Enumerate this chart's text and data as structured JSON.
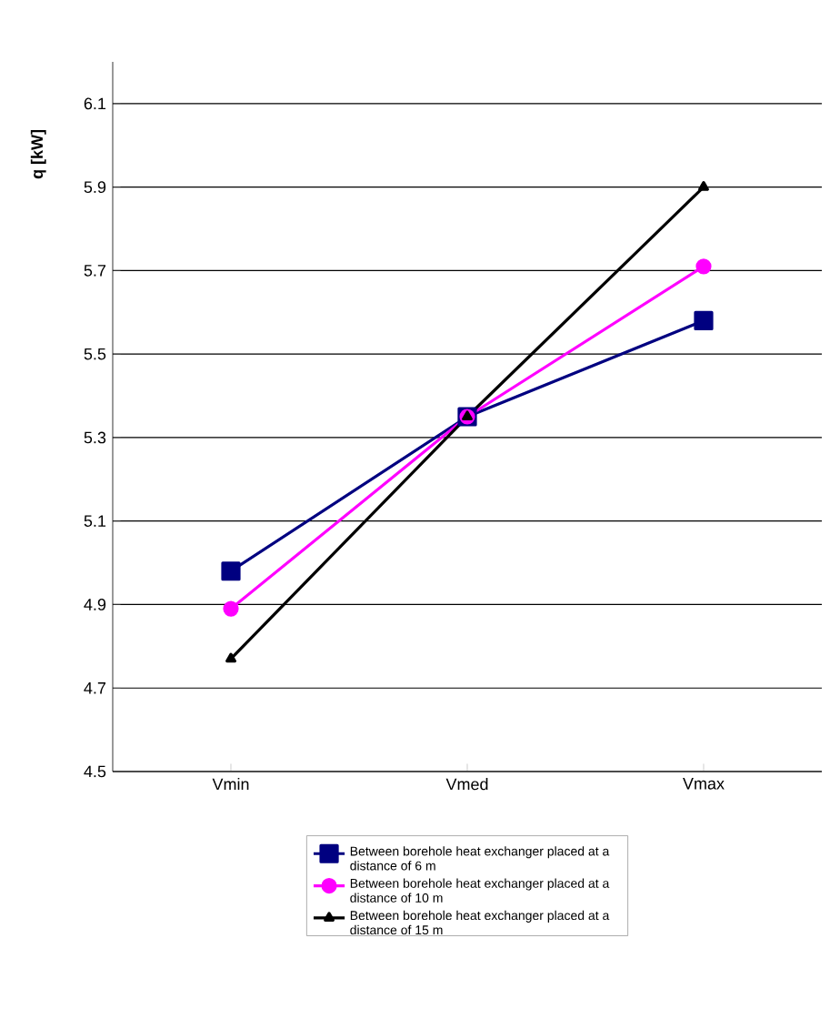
{
  "chart_data": {
    "type": "line",
    "ylabel": "q [kW]",
    "categories": [
      "Vmin",
      "Vmed",
      "Vmax"
    ],
    "series": [
      {
        "name": "Between borehole heat exchanger placed at a distance of 6 m",
        "color": "#000080",
        "values": [
          4.98,
          5.35,
          5.58
        ],
        "marker": "square"
      },
      {
        "name": "Between borehole heat exchanger placed at a distance of 10 m",
        "color": "#ff00ff",
        "values": [
          4.89,
          5.35,
          5.71
        ],
        "marker": "circle"
      },
      {
        "name": "Between borehole heat exchanger placed at a distance of 15 m",
        "color": "#000000",
        "values": [
          4.77,
          5.35,
          5.9
        ],
        "marker": "triangle"
      }
    ],
    "ylim": [
      4.5,
      6.2
    ],
    "yticks": [
      4.5,
      4.7,
      4.9,
      5.1,
      5.3,
      5.5,
      5.7,
      5.9,
      6.1
    ],
    "grid": "y",
    "legend": "bottom",
    "line_style": "solid"
  }
}
